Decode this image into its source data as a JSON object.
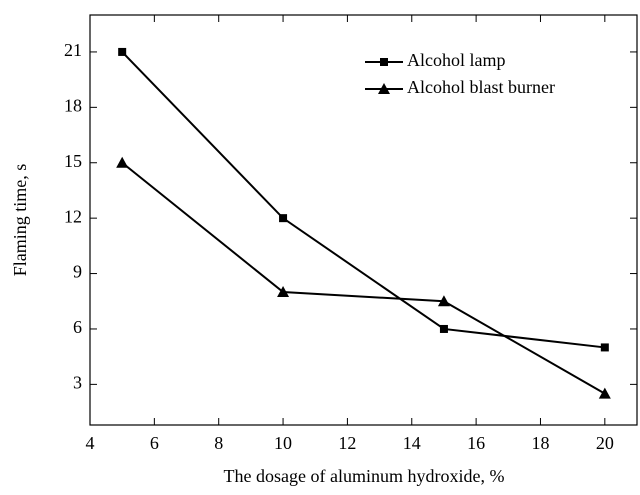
{
  "chart_data": {
    "type": "line",
    "xlabel": "The dosage of aluminum hydroxide, %",
    "ylabel": "Flaming time,  s",
    "x": [
      5,
      10,
      15,
      20
    ],
    "series": [
      {
        "name": "Alcohol lamp",
        "color": "#000000",
        "marker": "square",
        "values": [
          21,
          12,
          6,
          5
        ]
      },
      {
        "name": "Alcohol blast burner",
        "color": "#000000",
        "marker": "triangle",
        "values": [
          15,
          8,
          7.5,
          2.5
        ]
      }
    ],
    "xlim": [
      4,
      21
    ],
    "xticks": [
      4,
      6,
      8,
      10,
      12,
      14,
      16,
      18,
      20
    ],
    "ylim": [
      0.8,
      23
    ],
    "yticks": [
      3,
      6,
      9,
      12,
      15,
      18,
      21
    ],
    "legend": "upper right",
    "grid": false
  }
}
